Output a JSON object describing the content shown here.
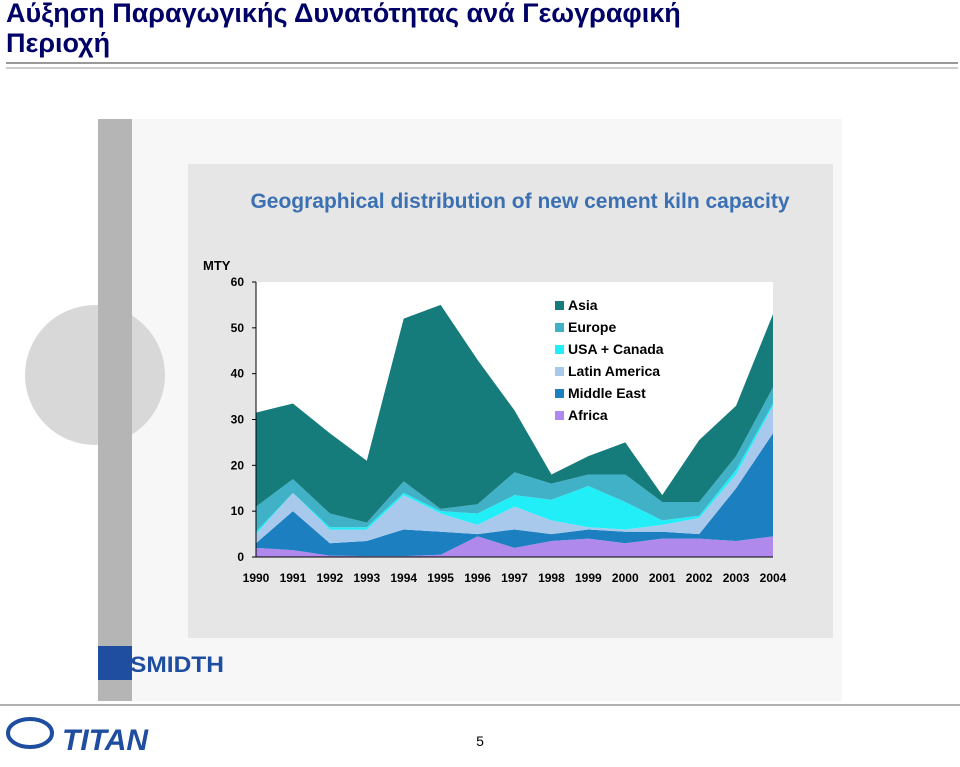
{
  "title": "Αύξηση Παραγωγικής Δυνατότητας ανά Γεωγραφική Περιοχή",
  "logos": {
    "top": "FLSMIDTH",
    "bottom": "TITAN"
  },
  "page_number": "5",
  "chart_data": {
    "type": "stacked_area",
    "title": "Geographical distribution of new cement kiln capacity",
    "y_label": "MTY",
    "categories": [
      "1990",
      "1991",
      "1992",
      "1993",
      "1994",
      "1995",
      "1996",
      "1997",
      "1998",
      "1999",
      "2000",
      "2001",
      "2002",
      "2003",
      "2004"
    ],
    "ylim": [
      0,
      60
    ],
    "yticks": [
      0,
      10,
      20,
      30,
      40,
      50,
      60
    ],
    "legend": "upper right",
    "series": [
      {
        "name": "Africa",
        "color": "#b089ec",
        "values": [
          2,
          1.5,
          0.3,
          0.2,
          0.2,
          0.5,
          4.5,
          2,
          3.5,
          4,
          3,
          4,
          4,
          3.5,
          4.5
        ]
      },
      {
        "name": "Middle East",
        "color": "#1b7fc0",
        "values": [
          1,
          8.5,
          2.7,
          3.3,
          5.8,
          5,
          0.5,
          4,
          1.5,
          2,
          2.5,
          1.5,
          1,
          11.5,
          22.5
        ]
      },
      {
        "name": "Latin America",
        "color": "#a9c9ec",
        "values": [
          2,
          4,
          3,
          2.5,
          7.5,
          4,
          2,
          5,
          3,
          0.5,
          0.5,
          1.5,
          3.5,
          3,
          6
        ]
      },
      {
        "name": "USA + Canada",
        "color": "#22eef8",
        "values": [
          0.5,
          0,
          0.5,
          0.5,
          0.5,
          0.5,
          2.5,
          2.5,
          4.5,
          9,
          6,
          1,
          0.5,
          1,
          0.5
        ]
      },
      {
        "name": "Europe",
        "color": "#40b1c6",
        "values": [
          5.5,
          3,
          3,
          1,
          2.5,
          0.5,
          2,
          5,
          3.5,
          2.5,
          6,
          4,
          3,
          3,
          3.5
        ]
      },
      {
        "name": "Asia",
        "color": "#167b7b",
        "values": [
          20.5,
          16.5,
          17.5,
          13.5,
          35.5,
          44.5,
          31.5,
          13.5,
          2,
          4,
          7,
          1.5,
          13.5,
          11,
          16
        ]
      }
    ]
  }
}
